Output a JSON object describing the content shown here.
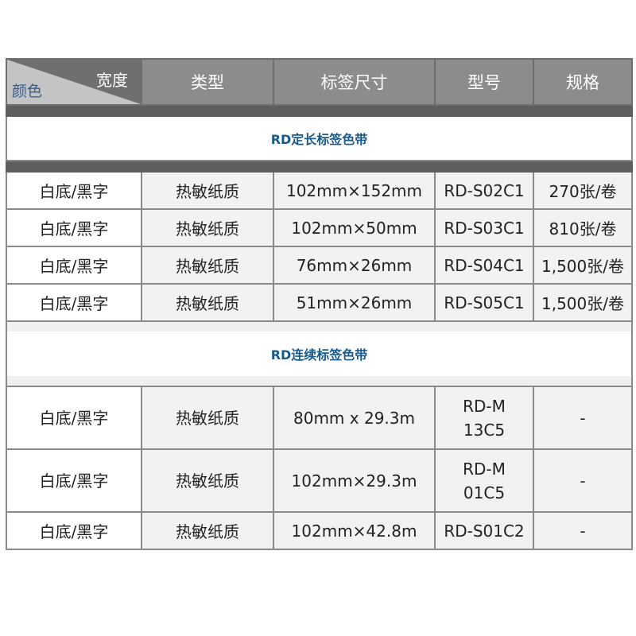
{
  "header": {
    "corner_width_label": "宽度",
    "corner_color_label": "颜色",
    "columns": [
      "类型",
      "标签尺寸",
      "型号",
      "规格"
    ]
  },
  "sections": [
    {
      "title": "RD定长标签色带",
      "rows": [
        [
          "白底/黑字",
          "热敏纸质",
          "102mm×152mm",
          "RD-S02C1",
          "270张/卷"
        ],
        [
          "白底/黑字",
          "热敏纸质",
          "102mm×50mm",
          "RD-S03C1",
          "810张/卷"
        ],
        [
          "白底/黑字",
          "热敏纸质",
          "76mm×26mm",
          "RD-S04C1",
          "1,500张/卷"
        ],
        [
          "白底/黑字",
          "热敏纸质",
          "51mm×26mm",
          "RD-S05C1",
          "1,500张/卷"
        ]
      ]
    },
    {
      "title": "RD连续标签色带",
      "rows": [
        [
          "白底/黑字",
          "热敏纸质",
          "80mm x 29.3m",
          "RD-M13C5",
          "-"
        ],
        [
          "白底/黑字",
          "热敏纸质",
          "102mm×29.3m",
          "RD-M01C5",
          "-"
        ],
        [
          "白底/黑字",
          "热敏纸质",
          "102mm×42.8m",
          "RD-S01C2",
          "-"
        ]
      ]
    }
  ]
}
